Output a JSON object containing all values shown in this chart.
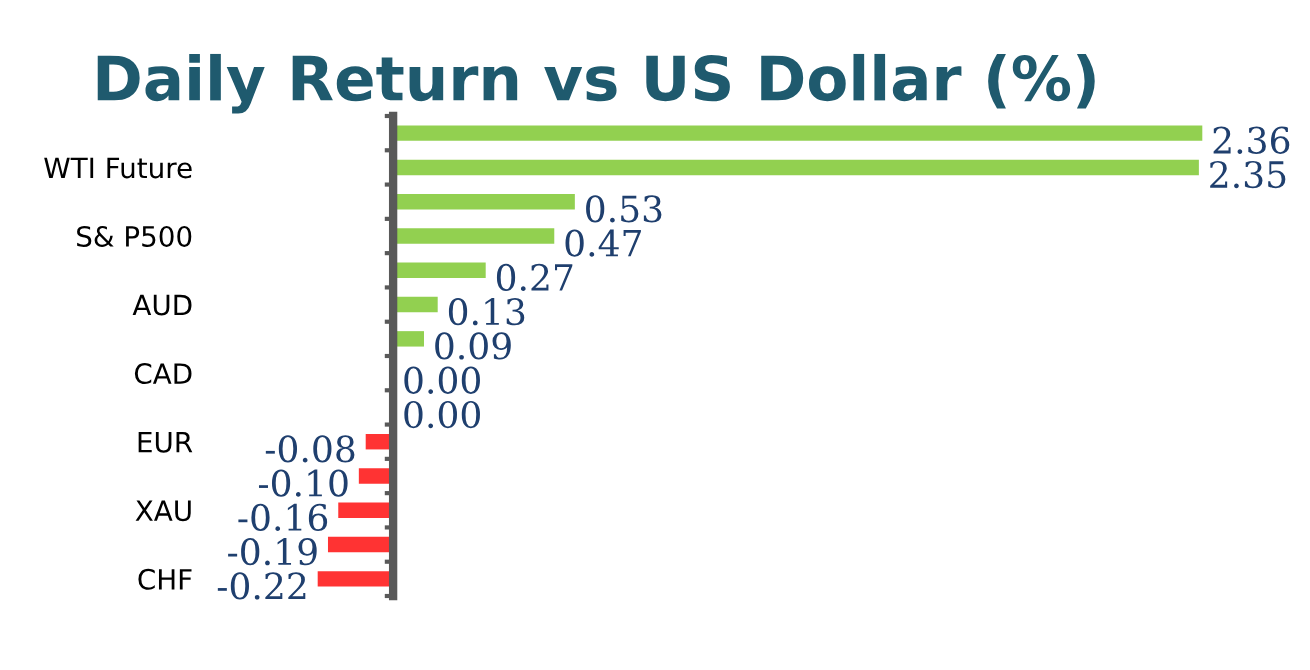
{
  "chart_data": {
    "type": "bar",
    "orientation": "horizontal",
    "title": "Daily Return vs US Dollar (%)",
    "categories": [
      null,
      "WTI Future",
      null,
      "S& P500",
      null,
      "AUD",
      null,
      "CAD",
      null,
      "EUR",
      null,
      "XAU",
      null,
      "CHF"
    ],
    "values": [
      2.36,
      2.35,
      0.53,
      0.47,
      0.27,
      0.13,
      0.09,
      0.0,
      0.0,
      -0.08,
      -0.1,
      -0.16,
      -0.19,
      -0.22
    ],
    "colors": [
      "#92d050",
      "#92d050",
      "#92d050",
      "#92d050",
      "#92d050",
      "#92d050",
      "#92d050",
      "#92d050",
      "#92d050",
      "#ff3333",
      "#ff3333",
      "#ff3333",
      "#ff3333",
      "#ff3333"
    ],
    "value_labels": [
      "2.36",
      "2.35",
      "0.53",
      "0.47",
      "0.27",
      "0.13",
      "0.09",
      "0.00",
      "0.00",
      "-0.08",
      "-0.10",
      "-0.16",
      "-0.19",
      "-0.22"
    ],
    "grid": false,
    "legend": false
  }
}
